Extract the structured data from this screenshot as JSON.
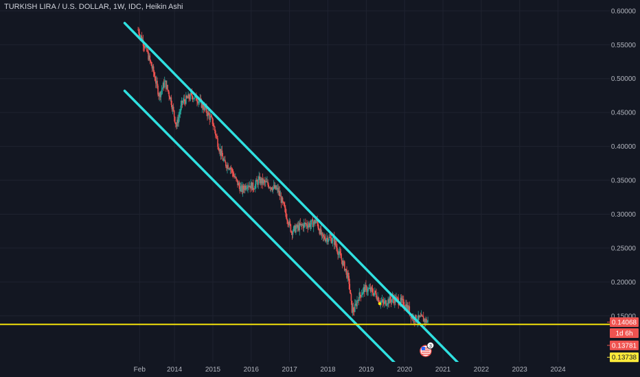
{
  "header": {
    "title": "TURKISH LIRA / U.S. DOLLAR, 1W, IDC, Heikin Ashi"
  },
  "colors": {
    "background": "#131722",
    "grid": "#1f2330",
    "channel": "#2fe0e0",
    "support": "#f5e30a",
    "candle_up": "#26a69a",
    "candle_down": "#ef5350",
    "axis_text": "#b2b5be",
    "tag_red": "#ef5350",
    "tag_yellow": "#ffeb3b"
  },
  "price_tags": [
    {
      "label": "0.14068",
      "kind": "current"
    },
    {
      "label": "1d 6h",
      "kind": "countdown"
    },
    {
      "label": "0.13781",
      "kind": "red-line"
    },
    {
      "label": "0.13738",
      "kind": "support"
    }
  ],
  "marker": {
    "label": "3",
    "icon": "us-flag-icon"
  },
  "chart_data": {
    "type": "candlestick",
    "y_ticks": [
      "0.60000",
      "0.55000",
      "0.50000",
      "0.45000",
      "0.40000",
      "0.35000",
      "0.30000",
      "0.25000",
      "0.20000",
      "0.15000"
    ],
    "y_values": [
      0.6,
      0.55,
      0.5,
      0.45,
      0.4,
      0.35,
      0.3,
      0.25,
      0.2,
      0.15
    ],
    "ylim": [
      0.082,
      0.616
    ],
    "x_ticks": [
      "Feb",
      "2014",
      "2015",
      "2016",
      "2017",
      "2018",
      "2019",
      "2020",
      "2021",
      "2022",
      "2023",
      "2024"
    ],
    "x_tick_values": [
      2013.09,
      2014.0,
      2015.0,
      2016.0,
      2017.0,
      2018.0,
      2019.0,
      2020.0,
      2021.0,
      2022.0,
      2023.0,
      2024.0
    ],
    "xlim": [
      2009.45,
      2025.35
    ],
    "price_path": [
      [
        2013.05,
        0.572
      ],
      [
        2013.25,
        0.545
      ],
      [
        2013.45,
        0.51
      ],
      [
        2013.6,
        0.475
      ],
      [
        2013.75,
        0.495
      ],
      [
        2013.9,
        0.47
      ],
      [
        2014.05,
        0.43
      ],
      [
        2014.2,
        0.465
      ],
      [
        2014.45,
        0.475
      ],
      [
        2014.6,
        0.47
      ],
      [
        2014.8,
        0.455
      ],
      [
        2015.0,
        0.435
      ],
      [
        2015.15,
        0.4
      ],
      [
        2015.3,
        0.375
      ],
      [
        2015.45,
        0.37
      ],
      [
        2015.6,
        0.35
      ],
      [
        2015.75,
        0.335
      ],
      [
        2015.9,
        0.345
      ],
      [
        2016.05,
        0.34
      ],
      [
        2016.2,
        0.35
      ],
      [
        2016.4,
        0.345
      ],
      [
        2016.55,
        0.34
      ],
      [
        2016.7,
        0.335
      ],
      [
        2016.85,
        0.31
      ],
      [
        2017.05,
        0.275
      ],
      [
        2017.2,
        0.28
      ],
      [
        2017.4,
        0.285
      ],
      [
        2017.55,
        0.285
      ],
      [
        2017.7,
        0.29
      ],
      [
        2017.85,
        0.265
      ],
      [
        2018.0,
        0.265
      ],
      [
        2018.15,
        0.262
      ],
      [
        2018.3,
        0.24
      ],
      [
        2018.45,
        0.22
      ],
      [
        2018.55,
        0.2
      ],
      [
        2018.62,
        0.16
      ],
      [
        2018.68,
        0.158
      ],
      [
        2018.8,
        0.178
      ],
      [
        2018.95,
        0.19
      ],
      [
        2019.1,
        0.188
      ],
      [
        2019.25,
        0.182
      ],
      [
        2019.35,
        0.172
      ],
      [
        2019.45,
        0.168
      ],
      [
        2019.55,
        0.172
      ],
      [
        2019.7,
        0.175
      ],
      [
        2019.85,
        0.172
      ],
      [
        2020.0,
        0.168
      ],
      [
        2020.1,
        0.16
      ],
      [
        2020.2,
        0.148
      ],
      [
        2020.3,
        0.145
      ],
      [
        2020.45,
        0.146
      ],
      [
        2020.55,
        0.143
      ],
      [
        2020.62,
        0.1407
      ]
    ],
    "channel_upper": [
      [
        2012.7,
        0.582
      ],
      [
        2021.65,
        0.066
      ]
    ],
    "channel_lower": [
      [
        2012.7,
        0.482
      ],
      [
        2020.0,
        0.066
      ]
    ],
    "support_line": 0.13738,
    "current_price": 0.14068,
    "red_line_price": 0.13781
  }
}
